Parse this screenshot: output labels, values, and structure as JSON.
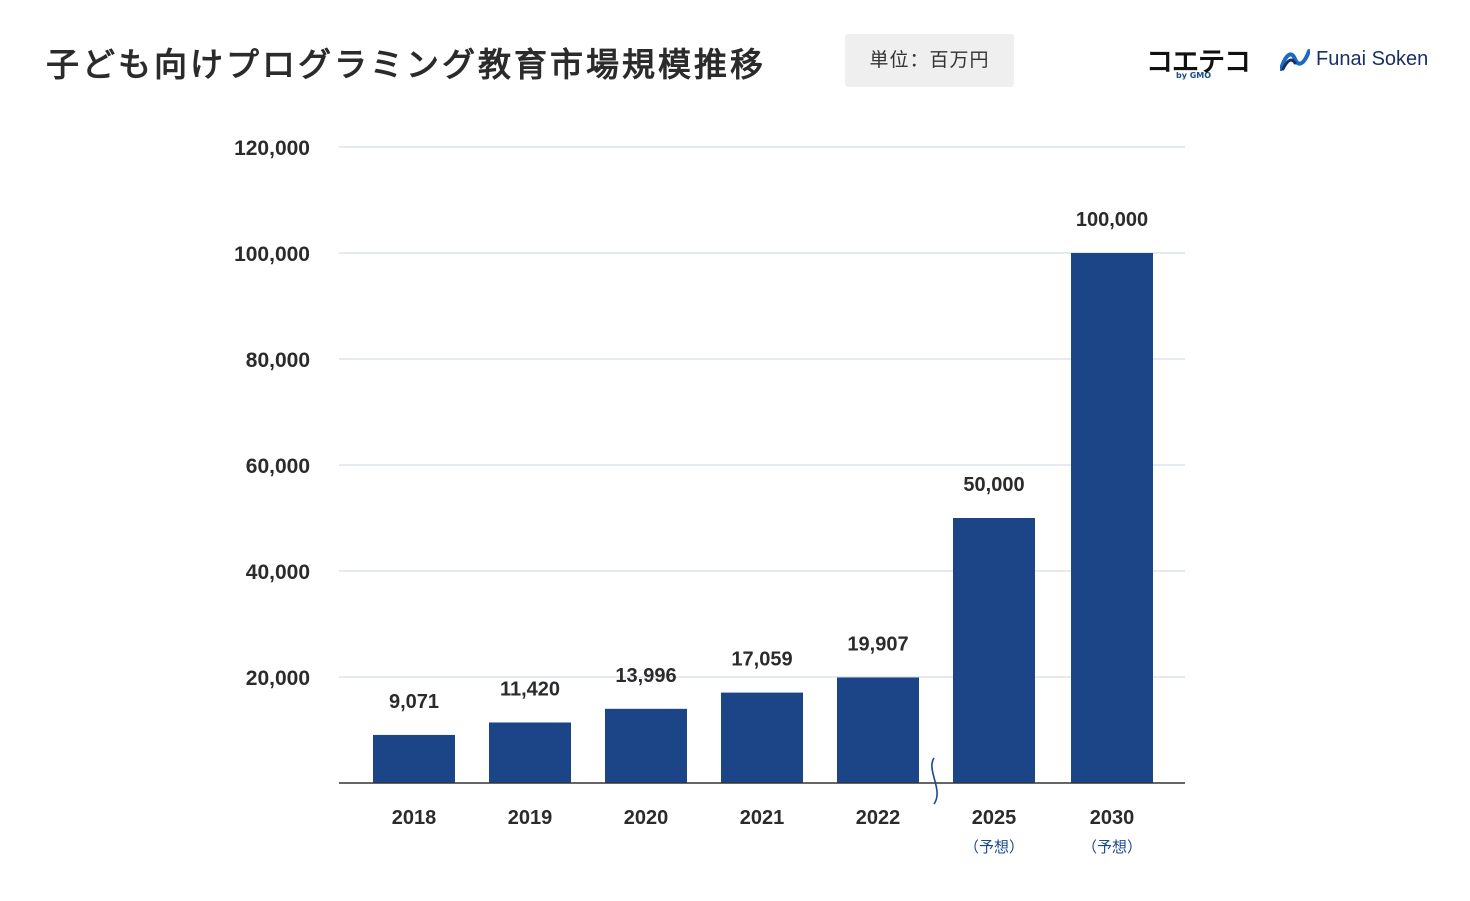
{
  "header": {
    "title": "子ども向けプログラミング教育市場規模推移",
    "unit": "単位：百万円"
  },
  "logos": {
    "koeteco": "コエテコ",
    "koeteco_by": "by GMO",
    "funai": "Funai Soken"
  },
  "colors": {
    "bar": "#1c4587",
    "grid": "#d5dde8",
    "axis": "#333333",
    "note": "#1b4a8a"
  },
  "chart_data": {
    "type": "bar",
    "categories": [
      "2018",
      "2019",
      "2020",
      "2021",
      "2022",
      "2025",
      "2030"
    ],
    "category_notes": [
      "",
      "",
      "",
      "",
      "",
      "（予想）",
      "（予想）"
    ],
    "values": [
      9071,
      11420,
      13996,
      17059,
      19907,
      50000,
      100000
    ],
    "value_labels": [
      "9,071",
      "11,420",
      "13,996",
      "17,059",
      "19,907",
      "50,000",
      "100,000"
    ],
    "ylim": [
      0,
      120000
    ],
    "yticks": [
      20000,
      40000,
      60000,
      80000,
      100000,
      120000
    ],
    "ytick_labels": [
      "20,000",
      "40,000",
      "60,000",
      "80,000",
      "100,000",
      "120,000"
    ],
    "axis_break_after": "2022",
    "grid": true,
    "legend": "none"
  }
}
